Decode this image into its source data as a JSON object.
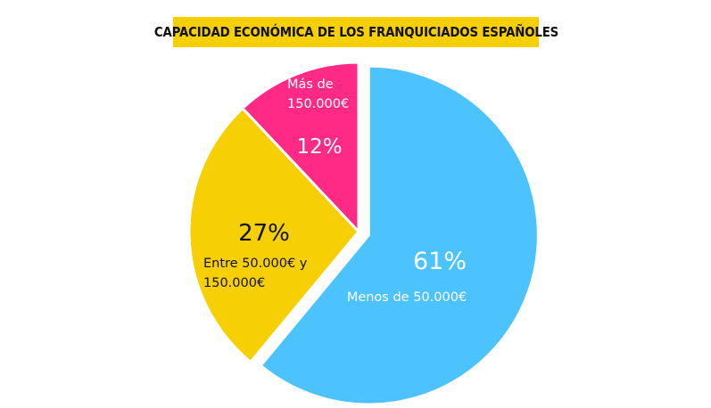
{
  "chart_data": {
    "type": "pie",
    "title": "CAPACIDAD ECONÓMICA DE LOS FRANQUICIADOS ESPAÑOLES",
    "slices": [
      {
        "label_lines": [
          "Menos de 50.000€"
        ],
        "value": 61,
        "value_label": "61%",
        "color": "#4dc3fd",
        "text_color": "#ffffff",
        "exploded": true
      },
      {
        "label_lines": [
          "Entre 50.000€ y",
          "150.000€"
        ],
        "value": 27,
        "value_label": "27%",
        "color": "#f7cf05",
        "text_color": "#111111",
        "exploded": false
      },
      {
        "label_lines": [
          "Más de",
          "150.000€"
        ],
        "value": 12,
        "value_label": "12%",
        "color": "#fe2a85",
        "text_color": "#ffffff",
        "exploded": false
      }
    ]
  }
}
